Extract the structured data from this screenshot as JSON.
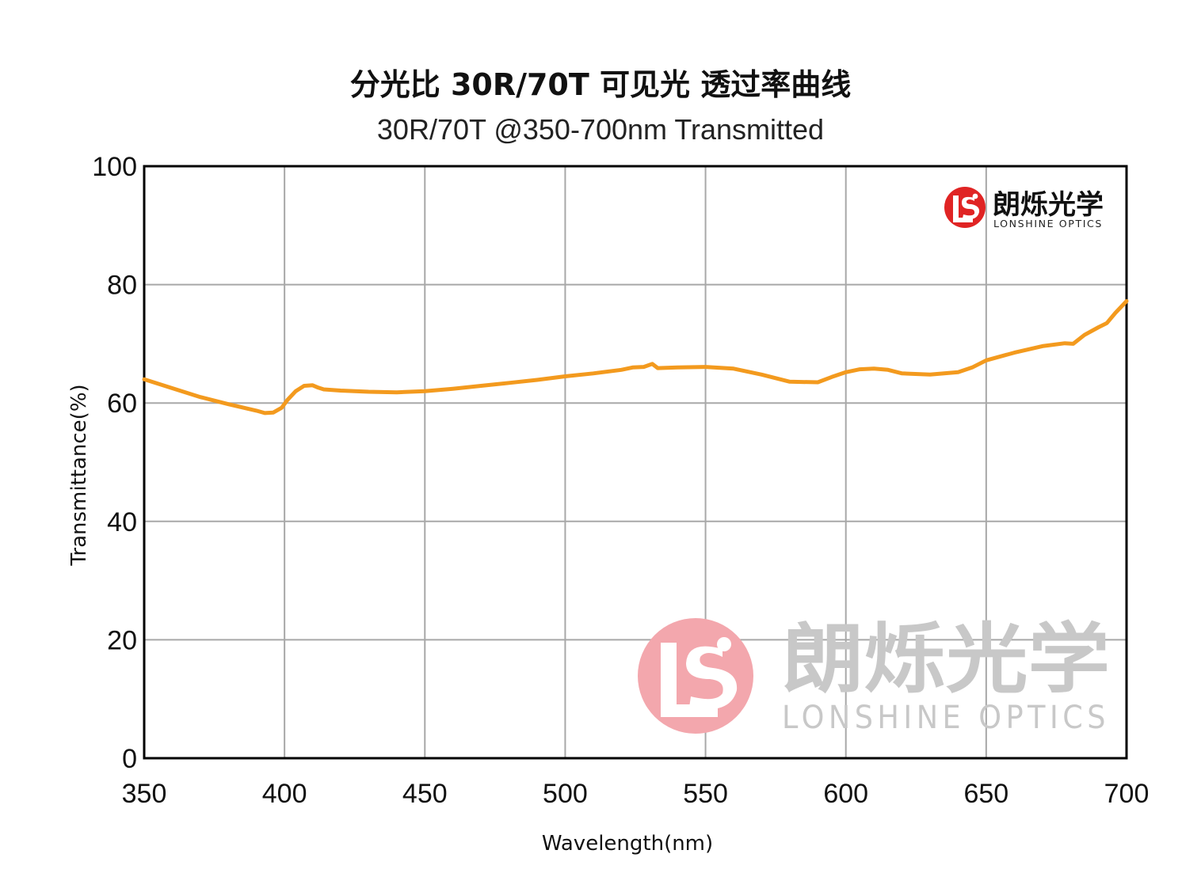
{
  "chart_data": {
    "type": "line",
    "title": "分光比 30R/70T 可见光 透过率曲线",
    "subtitle": "30R/70T @350-700nm  Transmitted",
    "xlabel": "Wavelength(nm)",
    "ylabel": "Transmittance(%)",
    "xlim": [
      350,
      700
    ],
    "ylim": [
      0,
      100
    ],
    "xticks": [
      350,
      400,
      450,
      500,
      550,
      600,
      650,
      700
    ],
    "yticks": [
      0,
      20,
      40,
      60,
      80,
      100
    ],
    "grid": true,
    "series": [
      {
        "color": "#f39a1e",
        "x": [
          350,
          360,
          370,
          380,
          390,
          393,
          396,
          399,
          401,
          404,
          407,
          410,
          412,
          414,
          420,
          430,
          440,
          450,
          460,
          470,
          480,
          490,
          500,
          510,
          520,
          524,
          528,
          531,
          533,
          540,
          550,
          560,
          570,
          580,
          590,
          595,
          600,
          605,
          610,
          615,
          620,
          630,
          640,
          645,
          650,
          660,
          670,
          678,
          681,
          685,
          690,
          693,
          696,
          700
        ],
        "y": [
          64.0,
          62.5,
          61.0,
          59.8,
          58.7,
          58.3,
          58.4,
          59.2,
          60.5,
          62.0,
          62.9,
          63.0,
          62.6,
          62.3,
          62.1,
          61.9,
          61.8,
          62.0,
          62.4,
          62.9,
          63.4,
          63.9,
          64.5,
          65.0,
          65.6,
          66.0,
          66.1,
          66.6,
          65.9,
          66.0,
          66.1,
          65.8,
          64.8,
          63.6,
          63.5,
          64.4,
          65.2,
          65.7,
          65.8,
          65.6,
          65.0,
          64.8,
          65.2,
          66.0,
          67.2,
          68.5,
          69.6,
          70.1,
          70.0,
          71.5,
          72.8,
          73.5,
          75.2,
          77.2
        ]
      }
    ]
  },
  "logo": {
    "cn": "朗烁光学",
    "en": "LONSHINE OPTICS",
    "brand_color": "#e02424"
  },
  "watermark": {
    "cn": "朗烁光学",
    "en": "LONSHINE OPTICS",
    "color": "#f0a0a8"
  }
}
